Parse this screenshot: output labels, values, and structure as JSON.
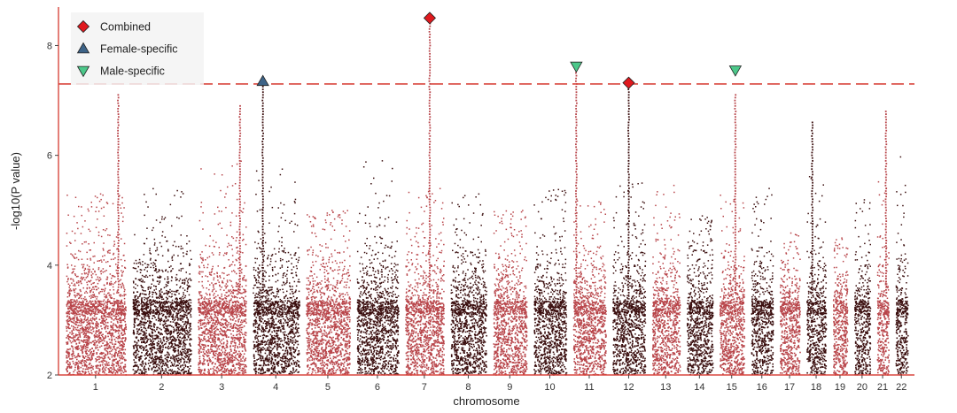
{
  "chart_data": {
    "type": "scatter",
    "subtype": "manhattan",
    "title": "",
    "xlabel": "chromosome",
    "ylabel": "-log10(P value)",
    "ylim": [
      2,
      8.7
    ],
    "yticks": [
      2,
      4,
      6,
      8
    ],
    "grid": false,
    "legend_position": "top-left",
    "significance_threshold": 7.3,
    "threshold_line": "dashed",
    "colors": {
      "odd_chromosomes": "#b8454a",
      "even_chromosomes": "#3a0e0e",
      "threshold": "#d9473f",
      "axis": "#d9473f",
      "combined": "#e0191e",
      "female_specific": "#3d6387",
      "male_specific": "#4cc88a"
    },
    "chromosomes": [
      {
        "label": "1",
        "relative_size": 1.0,
        "peak": 5.3
      },
      {
        "label": "2",
        "relative_size": 0.97,
        "peak": 5.4
      },
      {
        "label": "3",
        "relative_size": 0.8,
        "peak": 5.9
      },
      {
        "label": "4",
        "relative_size": 0.77,
        "peak": 5.8
      },
      {
        "label": "5",
        "relative_size": 0.73,
        "peak": 5.0
      },
      {
        "label": "6",
        "relative_size": 0.69,
        "peak": 6.0
      },
      {
        "label": "7",
        "relative_size": 0.64,
        "peak": 5.4
      },
      {
        "label": "8",
        "relative_size": 0.59,
        "peak": 5.3
      },
      {
        "label": "9",
        "relative_size": 0.56,
        "peak": 5.0
      },
      {
        "label": "10",
        "relative_size": 0.54,
        "peak": 5.4
      },
      {
        "label": "11",
        "relative_size": 0.54,
        "peak": 5.2
      },
      {
        "label": "12",
        "relative_size": 0.54,
        "peak": 5.5
      },
      {
        "label": "13",
        "relative_size": 0.46,
        "peak": 5.9
      },
      {
        "label": "14",
        "relative_size": 0.43,
        "peak": 4.9
      },
      {
        "label": "15",
        "relative_size": 0.41,
        "peak": 5.3
      },
      {
        "label": "16",
        "relative_size": 0.36,
        "peak": 5.4
      },
      {
        "label": "17",
        "relative_size": 0.33,
        "peak": 4.6
      },
      {
        "label": "18",
        "relative_size": 0.32,
        "peak": 5.7
      },
      {
        "label": "19",
        "relative_size": 0.24,
        "peak": 4.5
      },
      {
        "label": "20",
        "relative_size": 0.26,
        "peak": 5.2
      },
      {
        "label": "21",
        "relative_size": 0.19,
        "peak": 5.7
      },
      {
        "label": "22",
        "relative_size": 0.2,
        "peak": 6.0
      }
    ],
    "signal_columns": [
      {
        "chromosome": "1",
        "position": 0.88,
        "top": 7.1
      },
      {
        "chromosome": "3",
        "position": 0.88,
        "top": 6.9
      },
      {
        "chromosome": "4",
        "position": 0.22,
        "top": 7.3
      },
      {
        "chromosome": "7",
        "position": 0.64,
        "top": 8.4
      },
      {
        "chromosome": "11",
        "position": 0.1,
        "top": 7.6
      },
      {
        "chromosome": "12",
        "position": 0.5,
        "top": 7.3
      },
      {
        "chromosome": "15",
        "position": 0.65,
        "top": 7.1
      },
      {
        "chromosome": "18",
        "position": 0.3,
        "top": 6.6
      },
      {
        "chromosome": "21",
        "position": 0.8,
        "top": 6.8
      }
    ],
    "highlighted_snps": [
      {
        "group": "Female-specific",
        "chromosome": "4",
        "position": 0.22,
        "value": 7.35
      },
      {
        "group": "Combined",
        "chromosome": "7",
        "position": 0.64,
        "value": 8.5
      },
      {
        "group": "Male-specific",
        "chromosome": "11",
        "position": 0.1,
        "value": 7.62
      },
      {
        "group": "Combined",
        "chromosome": "12",
        "position": 0.5,
        "value": 7.32
      },
      {
        "group": "Male-specific",
        "chromosome": "15",
        "position": 0.65,
        "value": 7.55
      }
    ],
    "legend": [
      {
        "label": "Combined",
        "marker": "diamond"
      },
      {
        "label": "Female-specific",
        "marker": "triangle-up"
      },
      {
        "label": "Male-specific",
        "marker": "triangle-down"
      }
    ]
  }
}
